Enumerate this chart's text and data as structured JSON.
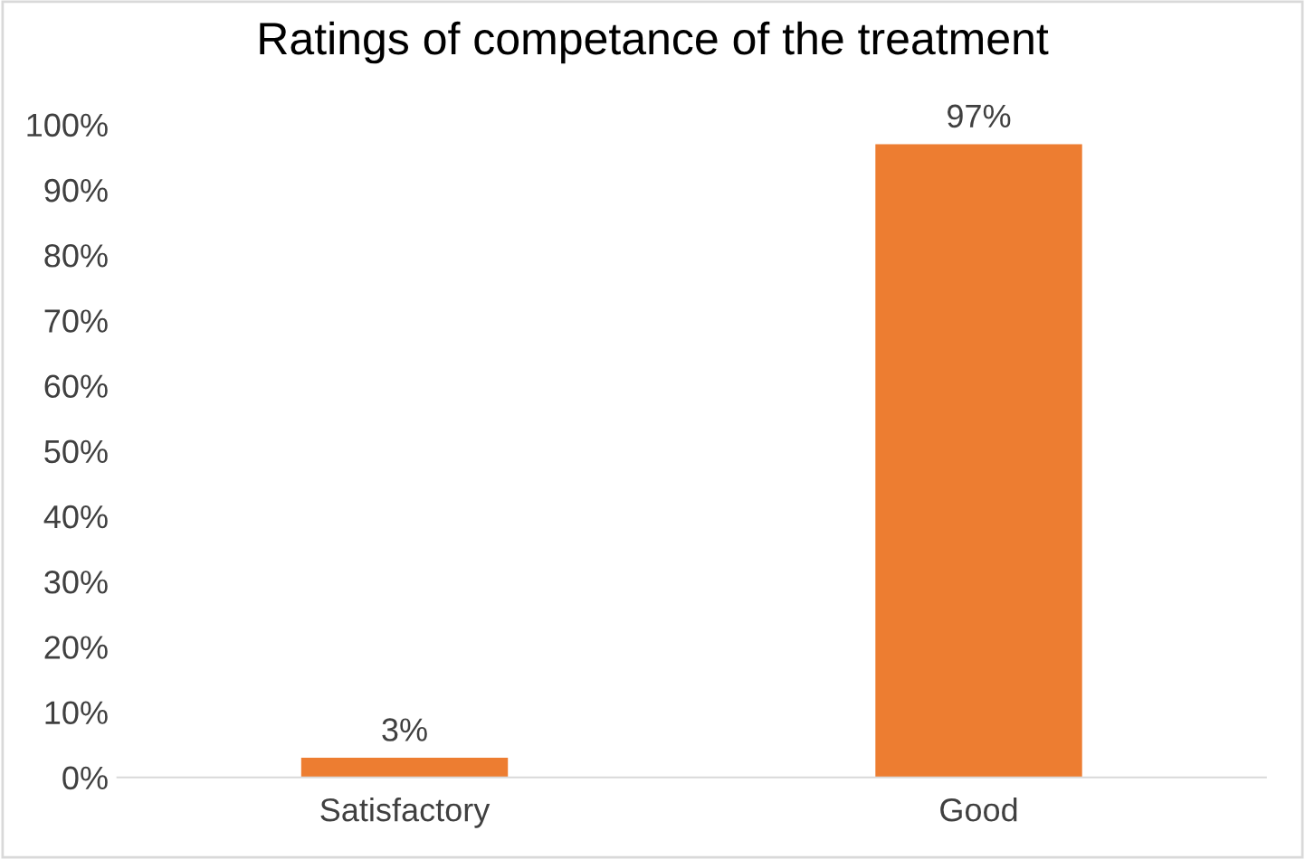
{
  "chart_data": {
    "type": "bar",
    "title": "Ratings of competance of the treatment",
    "categories": [
      "Satisfactory",
      "Good"
    ],
    "values": [
      3,
      97
    ],
    "value_labels": [
      "3%",
      "97%"
    ],
    "color": "#ed7d31",
    "ylim": [
      0,
      100
    ],
    "yticks": [
      {
        "value": 0,
        "label": "0%"
      },
      {
        "value": 10,
        "label": "10%"
      },
      {
        "value": 20,
        "label": "20%"
      },
      {
        "value": 30,
        "label": "30%"
      },
      {
        "value": 40,
        "label": "40%"
      },
      {
        "value": 50,
        "label": "50%"
      },
      {
        "value": 60,
        "label": "60%"
      },
      {
        "value": 70,
        "label": "70%"
      },
      {
        "value": 80,
        "label": "80%"
      },
      {
        "value": 90,
        "label": "90%"
      },
      {
        "value": 100,
        "label": "100%"
      }
    ],
    "grid": false,
    "legend": false
  }
}
